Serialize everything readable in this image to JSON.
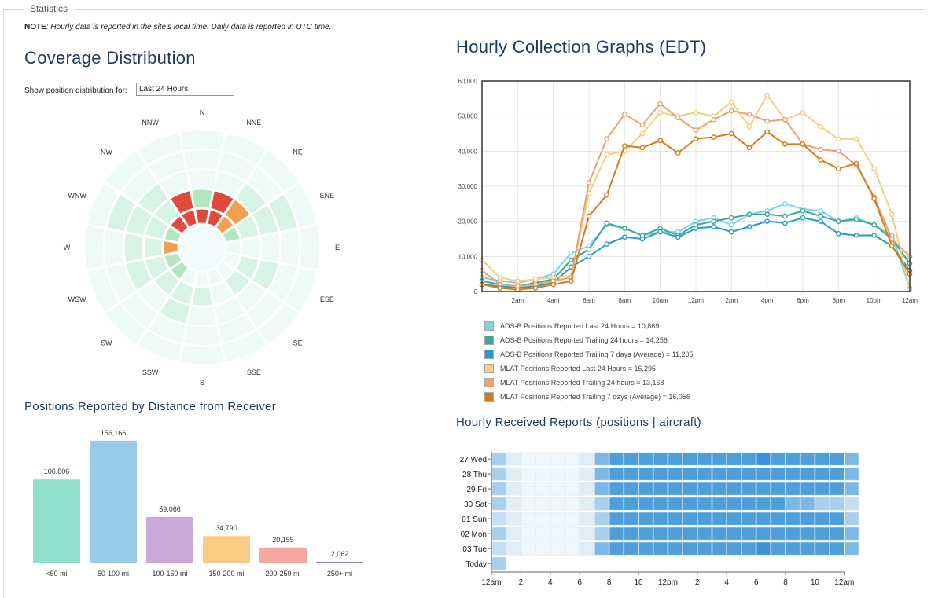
{
  "section": {
    "legend": "Statistics"
  },
  "note": {
    "label": "NOTE",
    "text": ": Hourly data is reported in the site's local time. Daily data is reported in UTC time."
  },
  "coverage": {
    "title": "Coverage Distribution",
    "show_label": "Show position distribution for:",
    "period_value": "Last 24 Hours",
    "directions": [
      "N",
      "NNE",
      "NE",
      "ENE",
      "E",
      "ESE",
      "SE",
      "SSE",
      "S",
      "SSW",
      "SW",
      "WSW",
      "W",
      "WNW",
      "NW",
      "NNW"
    ],
    "colors": {
      "very_low": "#eefaf7",
      "low": "#d7f3e6",
      "mid": "#b4e6bf",
      "high": "#f0a050",
      "very_high": "#e04a3a"
    }
  },
  "distance": {
    "title": "Positions Reported by Distance from Receiver",
    "chart_data": {
      "type": "bar",
      "categories": [
        "<50 mi",
        "50-100 mi",
        "100-150 mi",
        "150-200 mi",
        "200-250 mi",
        "250+ mi"
      ],
      "values": [
        106806,
        156166,
        59066,
        34790,
        20155,
        2062
      ],
      "labels": [
        "106,806",
        "156,166",
        "59,066",
        "34,790",
        "20,155",
        "2,062"
      ],
      "colors": [
        "#8ee0cc",
        "#9acbea",
        "#cba8dc",
        "#f8cd83",
        "#f4a6a0",
        "#8a8ac4"
      ]
    }
  },
  "hourly": {
    "title": "Hourly Collection Graphs (EDT)",
    "chart_data": {
      "type": "line",
      "x": [
        0,
        1,
        2,
        3,
        4,
        5,
        6,
        7,
        8,
        9,
        10,
        11,
        12,
        13,
        14,
        15,
        16,
        17,
        18,
        19,
        20,
        21,
        22,
        23,
        24
      ],
      "ylim": [
        0,
        60000
      ],
      "yticks": [
        "0",
        "10,000",
        "20,000",
        "30,000",
        "40,000",
        "50,000",
        "60,000"
      ],
      "xticks": [
        "2am",
        "4am",
        "6am",
        "8am",
        "10am",
        "12pm",
        "2pm",
        "4pm",
        "6pm",
        "8pm",
        "10pm",
        "12am"
      ],
      "series": [
        {
          "name": "ADS-B Positions Reported Last 24 Hours = 10,869",
          "color": "#7dd3e6",
          "values": [
            4000,
            3000,
            2500,
            3500,
            5000,
            11000,
            13000,
            19000,
            18000,
            16000,
            17000,
            17000,
            20000,
            21000,
            19000,
            22000,
            23000,
            25000,
            23500,
            23000,
            20000,
            21000,
            19000,
            16000,
            1000
          ]
        },
        {
          "name": "ADS-B Positions Reported Trailing 24 hours = 14,256",
          "color": "#3ea898",
          "values": [
            3000,
            2000,
            1500,
            2500,
            3500,
            9000,
            12000,
            19500,
            18000,
            16000,
            18000,
            16000,
            19000,
            20000,
            21000,
            22000,
            22000,
            21500,
            23000,
            21500,
            20000,
            20500,
            19000,
            15000,
            8000
          ]
        },
        {
          "name": "ADS-B Positions Reported Trailing 7 days (Average) = 11,205",
          "color": "#2a9ac8",
          "values": [
            2000,
            1500,
            1000,
            1500,
            2500,
            7000,
            10000,
            13500,
            15500,
            15000,
            17000,
            15500,
            18000,
            18500,
            17000,
            18500,
            20000,
            19500,
            21000,
            20000,
            16500,
            16000,
            16000,
            13000,
            6000
          ]
        },
        {
          "name": "MLAT Positions Reported Last 24 Hours = 16,295",
          "color": "#f2d080",
          "values": [
            9000,
            4000,
            3000,
            3500,
            4000,
            4500,
            28000,
            39000,
            40000,
            45000,
            51000,
            50000,
            51000,
            50000,
            54000,
            47000,
            56000,
            49000,
            51000,
            47000,
            43500,
            43500,
            35000,
            22000,
            500
          ]
        },
        {
          "name": "MLAT Positions Reported Trailing 24 hours = 13,168",
          "color": "#eea070",
          "values": [
            6000,
            2000,
            1500,
            2000,
            3000,
            4000,
            31000,
            43500,
            50500,
            47500,
            53500,
            49500,
            46000,
            49000,
            51500,
            50500,
            48500,
            49000,
            42000,
            40500,
            40000,
            36000,
            27000,
            15000,
            10000
          ]
        },
        {
          "name": "MLAT Positions Reported Trailing 7 days (Average) = 16,056",
          "color": "#d87a18",
          "values": [
            2000,
            1000,
            500,
            1000,
            2000,
            3000,
            21500,
            27500,
            41500,
            41000,
            43000,
            39500,
            43500,
            44000,
            45000,
            41000,
            45500,
            42000,
            42000,
            37500,
            35000,
            36500,
            26500,
            13000,
            5000
          ]
        }
      ]
    }
  },
  "received": {
    "title": "Hourly Received Reports (positions | aircraft)",
    "chart_data": {
      "type": "heatmap",
      "rows": [
        "27 Wed",
        "28 Thu",
        "29 Fri",
        "30 Sat",
        "01 Sun",
        "02 Mon",
        "03 Tue",
        "Today"
      ],
      "xticks": [
        "12am",
        "2",
        "4",
        "6",
        "8",
        "10",
        "12pm",
        "2",
        "4",
        "6",
        "8",
        "10",
        "12am"
      ],
      "values": [
        [
          4,
          2,
          1,
          1,
          1,
          1,
          2,
          5,
          6,
          6,
          6,
          6,
          6,
          6,
          6,
          6,
          6,
          6,
          7,
          6,
          6,
          6,
          6,
          6,
          5
        ],
        [
          4,
          2,
          1,
          1,
          1,
          1,
          2,
          5,
          6,
          6,
          6,
          6,
          6,
          6,
          6,
          6,
          6,
          6,
          6,
          6,
          6,
          6,
          6,
          6,
          5
        ],
        [
          4,
          2,
          1,
          1,
          1,
          1,
          2,
          5,
          6,
          6,
          6,
          6,
          6,
          6,
          6,
          6,
          6,
          6,
          6,
          6,
          6,
          6,
          6,
          6,
          5
        ],
        [
          4,
          2,
          1,
          1,
          1,
          1,
          2,
          4,
          6,
          6,
          6,
          6,
          6,
          6,
          6,
          6,
          6,
          6,
          6,
          6,
          5,
          5,
          4,
          4,
          3
        ],
        [
          3,
          2,
          1,
          1,
          1,
          1,
          2,
          4,
          6,
          6,
          6,
          6,
          6,
          6,
          6,
          6,
          6,
          6,
          6,
          6,
          6,
          6,
          6,
          6,
          4
        ],
        [
          4,
          2,
          1,
          1,
          1,
          1,
          2,
          4,
          6,
          6,
          6,
          6,
          6,
          6,
          6,
          6,
          6,
          6,
          6,
          6,
          6,
          6,
          6,
          6,
          5
        ],
        [
          3,
          2,
          1,
          1,
          1,
          1,
          2,
          5,
          6,
          6,
          6,
          6,
          6,
          6,
          6,
          6,
          6,
          6,
          7,
          6,
          6,
          6,
          6,
          6,
          5
        ],
        [
          4
        ]
      ],
      "colors": [
        "#ffffff",
        "#f0f7fc",
        "#e1eef8",
        "#c4dff2",
        "#a8cfec",
        "#7cb8e6",
        "#4d9fdc",
        "#3a93d8"
      ]
    }
  }
}
